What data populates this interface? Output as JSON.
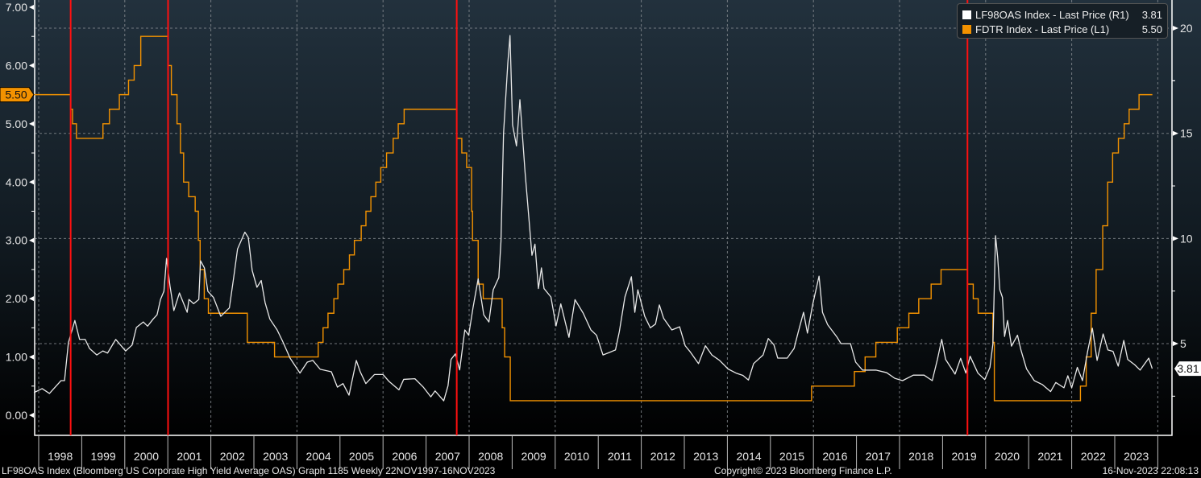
{
  "chart_data": {
    "type": "line",
    "title": "LF98OAS Index (Bloomberg US Corporate High Yield Average OAS) Graph 1185  Weekly 22NOV1997-16NOV2023",
    "copyright": "Copyright© 2023 Bloomberg Finance L.P.",
    "timestamp": "16-Nov-2023 22:08:13",
    "x_range": [
      "1997-11-22",
      "2023-11-16"
    ],
    "x_tick_labels": [
      "1998",
      "1999",
      "2000",
      "2001",
      "2002",
      "2003",
      "2004",
      "2005",
      "2006",
      "2007",
      "2008",
      "2009",
      "2010",
      "2011",
      "2012",
      "2013",
      "2014",
      "2015",
      "2016",
      "2017",
      "2018",
      "2019",
      "2020",
      "2021",
      "2022",
      "2023"
    ],
    "left_axis": {
      "range": [
        -0.35,
        7.1
      ],
      "ticks": [
        0,
        1,
        2,
        3,
        4,
        5,
        6,
        7
      ],
      "tick_labels": [
        "0.00",
        "1.00",
        "2.00",
        "3.00",
        "4.00",
        "5.00",
        "6.00",
        "7.00"
      ],
      "last_value_tag": "5.50"
    },
    "right_axis": {
      "range": [
        -0.1,
        21.3
      ],
      "ticks": [
        5,
        10,
        15,
        20
      ],
      "tick_labels": [
        "5",
        "10",
        "15",
        "20"
      ],
      "last_value_tag": "3.81"
    },
    "grid": true,
    "legend_position": "top-right",
    "legend": [
      {
        "name": "LF98OAS Index - Last Price (R1)",
        "value": "3.81",
        "color": "#ffffff"
      },
      {
        "name": "FDTR Index - Last Price (L1)",
        "value": "5.50",
        "color": "#f39200"
      }
    ],
    "markers": {
      "color": "#ff1010",
      "dates": [
        "1998-09-29",
        "2001-01-03",
        "2007-09-18",
        "2019-07-31"
      ]
    },
    "series": [
      {
        "name": "LF98OAS Index",
        "axis": "right",
        "color": "#e8e8e8",
        "points": [
          [
            1997.89,
            2.67
          ],
          [
            1998.08,
            2.86
          ],
          [
            1998.25,
            2.63
          ],
          [
            1998.52,
            3.24
          ],
          [
            1998.6,
            3.24
          ],
          [
            1998.69,
            5.04
          ],
          [
            1998.84,
            6.1
          ],
          [
            1998.95,
            5.2
          ],
          [
            1999.08,
            5.2
          ],
          [
            1999.18,
            4.77
          ],
          [
            1999.35,
            4.46
          ],
          [
            1999.49,
            4.65
          ],
          [
            1999.6,
            4.55
          ],
          [
            1999.79,
            5.2
          ],
          [
            2000.02,
            4.65
          ],
          [
            2000.17,
            4.93
          ],
          [
            2000.27,
            5.77
          ],
          [
            2000.43,
            6.03
          ],
          [
            2000.53,
            5.83
          ],
          [
            2000.66,
            6.17
          ],
          [
            2000.75,
            6.37
          ],
          [
            2000.83,
            7.1
          ],
          [
            2000.91,
            7.49
          ],
          [
            2000.97,
            9.05
          ],
          [
            2001.05,
            7.75
          ],
          [
            2001.14,
            6.57
          ],
          [
            2001.27,
            7.41
          ],
          [
            2001.33,
            7.1
          ],
          [
            2001.45,
            6.49
          ],
          [
            2001.49,
            7.1
          ],
          [
            2001.6,
            6.9
          ],
          [
            2001.72,
            7.1
          ],
          [
            2001.76,
            8.94
          ],
          [
            2001.85,
            8.6
          ],
          [
            2001.93,
            7.49
          ],
          [
            2002.06,
            7.2
          ],
          [
            2002.23,
            6.3
          ],
          [
            2002.43,
            6.7
          ],
          [
            2002.53,
            8.14
          ],
          [
            2002.62,
            9.5
          ],
          [
            2002.79,
            10.3
          ],
          [
            2002.87,
            10.05
          ],
          [
            2002.96,
            8.48
          ],
          [
            2003.07,
            7.68
          ],
          [
            2003.17,
            8.0
          ],
          [
            2003.26,
            6.95
          ],
          [
            2003.37,
            6.17
          ],
          [
            2003.54,
            5.65
          ],
          [
            2003.67,
            5.1
          ],
          [
            2003.84,
            4.31
          ],
          [
            2004.07,
            3.6
          ],
          [
            2004.24,
            4.12
          ],
          [
            2004.37,
            4.2
          ],
          [
            2004.54,
            3.78
          ],
          [
            2004.8,
            3.66
          ],
          [
            2004.94,
            2.93
          ],
          [
            2005.07,
            3.1
          ],
          [
            2005.21,
            2.55
          ],
          [
            2005.38,
            4.2
          ],
          [
            2005.47,
            3.66
          ],
          [
            2005.6,
            3.1
          ],
          [
            2005.8,
            3.53
          ],
          [
            2006.0,
            3.53
          ],
          [
            2006.14,
            3.2
          ],
          [
            2006.37,
            2.8
          ],
          [
            2006.48,
            3.3
          ],
          [
            2006.74,
            3.33
          ],
          [
            2006.94,
            2.92
          ],
          [
            2007.11,
            2.47
          ],
          [
            2007.21,
            2.75
          ],
          [
            2007.41,
            2.28
          ],
          [
            2007.51,
            3.0
          ],
          [
            2007.58,
            4.25
          ],
          [
            2007.68,
            4.51
          ],
          [
            2007.78,
            3.75
          ],
          [
            2007.9,
            5.65
          ],
          [
            2007.99,
            5.4
          ],
          [
            2008.09,
            6.7
          ],
          [
            2008.21,
            8.08
          ],
          [
            2008.34,
            6.37
          ],
          [
            2008.46,
            6.03
          ],
          [
            2008.56,
            7.56
          ],
          [
            2008.69,
            8.14
          ],
          [
            2008.74,
            9.86
          ],
          [
            2008.8,
            15.0
          ],
          [
            2008.9,
            18.37
          ],
          [
            2008.95,
            19.65
          ],
          [
            2009.01,
            15.4
          ],
          [
            2009.1,
            14.4
          ],
          [
            2009.18,
            16.6
          ],
          [
            2009.3,
            13.15
          ],
          [
            2009.38,
            11.18
          ],
          [
            2009.46,
            9.2
          ],
          [
            2009.53,
            9.73
          ],
          [
            2009.61,
            7.62
          ],
          [
            2009.68,
            8.6
          ],
          [
            2009.74,
            7.62
          ],
          [
            2009.9,
            7.22
          ],
          [
            2010.02,
            5.84
          ],
          [
            2010.13,
            6.89
          ],
          [
            2010.32,
            5.3
          ],
          [
            2010.46,
            7.09
          ],
          [
            2010.65,
            6.45
          ],
          [
            2010.83,
            5.65
          ],
          [
            2010.96,
            5.4
          ],
          [
            2011.11,
            4.46
          ],
          [
            2011.27,
            4.59
          ],
          [
            2011.4,
            4.7
          ],
          [
            2011.49,
            5.57
          ],
          [
            2011.62,
            7.22
          ],
          [
            2011.77,
            8.18
          ],
          [
            2011.85,
            6.49
          ],
          [
            2011.92,
            7.56
          ],
          [
            2012.08,
            6.3
          ],
          [
            2012.21,
            5.75
          ],
          [
            2012.33,
            5.93
          ],
          [
            2012.42,
            6.84
          ],
          [
            2012.52,
            6.2
          ],
          [
            2012.71,
            5.65
          ],
          [
            2012.89,
            5.8
          ],
          [
            2013.02,
            4.9
          ],
          [
            2013.14,
            4.6
          ],
          [
            2013.33,
            4.05
          ],
          [
            2013.49,
            4.9
          ],
          [
            2013.64,
            4.46
          ],
          [
            2013.82,
            4.2
          ],
          [
            2014.02,
            3.79
          ],
          [
            2014.2,
            3.6
          ],
          [
            2014.36,
            3.49
          ],
          [
            2014.49,
            3.27
          ],
          [
            2014.61,
            4.05
          ],
          [
            2014.83,
            4.46
          ],
          [
            2014.95,
            5.24
          ],
          [
            2015.08,
            4.95
          ],
          [
            2015.17,
            4.31
          ],
          [
            2015.39,
            4.31
          ],
          [
            2015.55,
            4.77
          ],
          [
            2015.64,
            5.5
          ],
          [
            2015.77,
            6.49
          ],
          [
            2015.86,
            5.5
          ],
          [
            2015.98,
            6.84
          ],
          [
            2016.13,
            8.21
          ],
          [
            2016.21,
            6.49
          ],
          [
            2016.33,
            5.9
          ],
          [
            2016.55,
            5.3
          ],
          [
            2016.64,
            5.0
          ],
          [
            2016.86,
            5.0
          ],
          [
            2016.98,
            4.12
          ],
          [
            2017.14,
            3.74
          ],
          [
            2017.45,
            3.74
          ],
          [
            2017.7,
            3.62
          ],
          [
            2017.89,
            3.35
          ],
          [
            2018.07,
            3.24
          ],
          [
            2018.32,
            3.5
          ],
          [
            2018.57,
            3.5
          ],
          [
            2018.76,
            3.24
          ],
          [
            2018.88,
            4.25
          ],
          [
            2018.98,
            5.2
          ],
          [
            2019.07,
            4.25
          ],
          [
            2019.29,
            3.55
          ],
          [
            2019.42,
            4.3
          ],
          [
            2019.54,
            3.6
          ],
          [
            2019.64,
            4.4
          ],
          [
            2019.82,
            3.6
          ],
          [
            2019.98,
            3.29
          ],
          [
            2020.1,
            3.87
          ],
          [
            2020.17,
            5.0
          ],
          [
            2020.23,
            10.13
          ],
          [
            2020.28,
            9.1
          ],
          [
            2020.33,
            7.56
          ],
          [
            2020.39,
            7.2
          ],
          [
            2020.44,
            5.34
          ],
          [
            2020.51,
            6.1
          ],
          [
            2020.6,
            4.88
          ],
          [
            2020.74,
            5.4
          ],
          [
            2020.82,
            4.7
          ],
          [
            2020.95,
            3.8
          ],
          [
            2021.13,
            3.24
          ],
          [
            2021.32,
            3.05
          ],
          [
            2021.51,
            2.72
          ],
          [
            2021.63,
            3.15
          ],
          [
            2021.82,
            2.9
          ],
          [
            2021.91,
            3.47
          ],
          [
            2022.0,
            2.9
          ],
          [
            2022.13,
            3.87
          ],
          [
            2022.25,
            3.24
          ],
          [
            2022.37,
            4.63
          ],
          [
            2022.48,
            5.73
          ],
          [
            2022.59,
            4.2
          ],
          [
            2022.73,
            5.46
          ],
          [
            2022.84,
            4.7
          ],
          [
            2022.96,
            4.63
          ],
          [
            2023.08,
            3.93
          ],
          [
            2023.21,
            5.15
          ],
          [
            2023.3,
            4.25
          ],
          [
            2023.46,
            4.0
          ],
          [
            2023.59,
            3.74
          ],
          [
            2023.79,
            4.31
          ],
          [
            2023.87,
            3.81
          ]
        ]
      },
      {
        "name": "FDTR Index",
        "axis": "left",
        "color": "#f39200",
        "steps": [
          [
            "1997-11-22",
            5.5
          ],
          [
            "1998-09-29",
            5.25
          ],
          [
            "1998-10-15",
            5.0
          ],
          [
            "1998-11-17",
            4.75
          ],
          [
            "1999-06-30",
            5.0
          ],
          [
            "1999-08-24",
            5.25
          ],
          [
            "1999-11-16",
            5.5
          ],
          [
            "2000-02-02",
            5.75
          ],
          [
            "2000-03-21",
            6.0
          ],
          [
            "2000-05-16",
            6.5
          ],
          [
            "2001-01-03",
            6.0
          ],
          [
            "2001-01-31",
            5.5
          ],
          [
            "2001-03-20",
            5.0
          ],
          [
            "2001-04-18",
            4.5
          ],
          [
            "2001-05-15",
            4.0
          ],
          [
            "2001-06-27",
            3.75
          ],
          [
            "2001-08-21",
            3.5
          ],
          [
            "2001-09-17",
            3.0
          ],
          [
            "2001-10-02",
            2.5
          ],
          [
            "2001-11-06",
            2.0
          ],
          [
            "2001-12-11",
            1.75
          ],
          [
            "2002-11-06",
            1.25
          ],
          [
            "2003-06-25",
            1.0
          ],
          [
            "2004-06-30",
            1.25
          ],
          [
            "2004-08-10",
            1.5
          ],
          [
            "2004-09-21",
            1.75
          ],
          [
            "2004-11-10",
            2.0
          ],
          [
            "2004-12-14",
            2.25
          ],
          [
            "2005-02-02",
            2.5
          ],
          [
            "2005-03-22",
            2.75
          ],
          [
            "2005-05-03",
            3.0
          ],
          [
            "2005-06-30",
            3.25
          ],
          [
            "2005-08-09",
            3.5
          ],
          [
            "2005-09-20",
            3.75
          ],
          [
            "2005-11-01",
            4.0
          ],
          [
            "2005-12-13",
            4.25
          ],
          [
            "2006-01-31",
            4.5
          ],
          [
            "2006-03-28",
            4.75
          ],
          [
            "2006-05-10",
            5.0
          ],
          [
            "2006-06-29",
            5.25
          ],
          [
            "2007-09-18",
            4.75
          ],
          [
            "2007-10-31",
            4.5
          ],
          [
            "2007-12-11",
            4.25
          ],
          [
            "2008-01-22",
            3.5
          ],
          [
            "2008-01-30",
            3.0
          ],
          [
            "2008-03-18",
            2.25
          ],
          [
            "2008-04-30",
            2.0
          ],
          [
            "2008-10-08",
            1.5
          ],
          [
            "2008-10-29",
            1.0
          ],
          [
            "2008-12-16",
            0.25
          ],
          [
            "2015-12-16",
            0.5
          ],
          [
            "2016-12-14",
            0.75
          ],
          [
            "2017-03-15",
            1.0
          ],
          [
            "2017-06-14",
            1.25
          ],
          [
            "2017-12-13",
            1.5
          ],
          [
            "2018-03-21",
            1.75
          ],
          [
            "2018-06-13",
            2.0
          ],
          [
            "2018-09-26",
            2.25
          ],
          [
            "2018-12-19",
            2.5
          ],
          [
            "2019-07-31",
            2.25
          ],
          [
            "2019-09-18",
            2.0
          ],
          [
            "2019-10-30",
            1.75
          ],
          [
            "2020-03-03",
            1.25
          ],
          [
            "2020-03-15",
            0.25
          ],
          [
            "2022-03-16",
            0.5
          ],
          [
            "2022-05-04",
            1.0
          ],
          [
            "2022-06-15",
            1.75
          ],
          [
            "2022-07-27",
            2.5
          ],
          [
            "2022-09-21",
            3.25
          ],
          [
            "2022-11-02",
            4.0
          ],
          [
            "2022-12-14",
            4.5
          ],
          [
            "2023-02-01",
            4.75
          ],
          [
            "2023-03-22",
            5.0
          ],
          [
            "2023-05-03",
            5.25
          ],
          [
            "2023-07-26",
            5.5
          ],
          [
            "2023-11-16",
            5.5
          ]
        ]
      }
    ]
  }
}
